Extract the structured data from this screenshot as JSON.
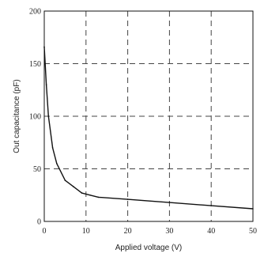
{
  "chart_data": {
    "type": "line",
    "title": "",
    "xlabel": "Applied voltage (V)",
    "ylabel": "Out capacitance (pF)",
    "xlim": [
      0,
      50
    ],
    "ylim": [
      0,
      200
    ],
    "xticks": [
      0,
      10,
      20,
      30,
      40,
      50
    ],
    "yticks": [
      0,
      50,
      100,
      150,
      200
    ],
    "xtick_labels": [
      "0",
      "10",
      "20",
      "30",
      "40",
      "50"
    ],
    "ytick_labels": [
      "0",
      "50",
      "100",
      "150",
      "200"
    ],
    "grid": true,
    "grid_style": "dashed",
    "series": [
      {
        "x": [
          0,
          0.5,
          1,
          2,
          3,
          5,
          7,
          9,
          11,
          13,
          20,
          30,
          40,
          50
        ],
        "y": [
          166,
          130,
          100,
          70,
          55,
          39,
          33,
          27,
          25,
          23,
          21,
          18,
          15,
          12
        ]
      }
    ],
    "line_color": "#111111"
  }
}
